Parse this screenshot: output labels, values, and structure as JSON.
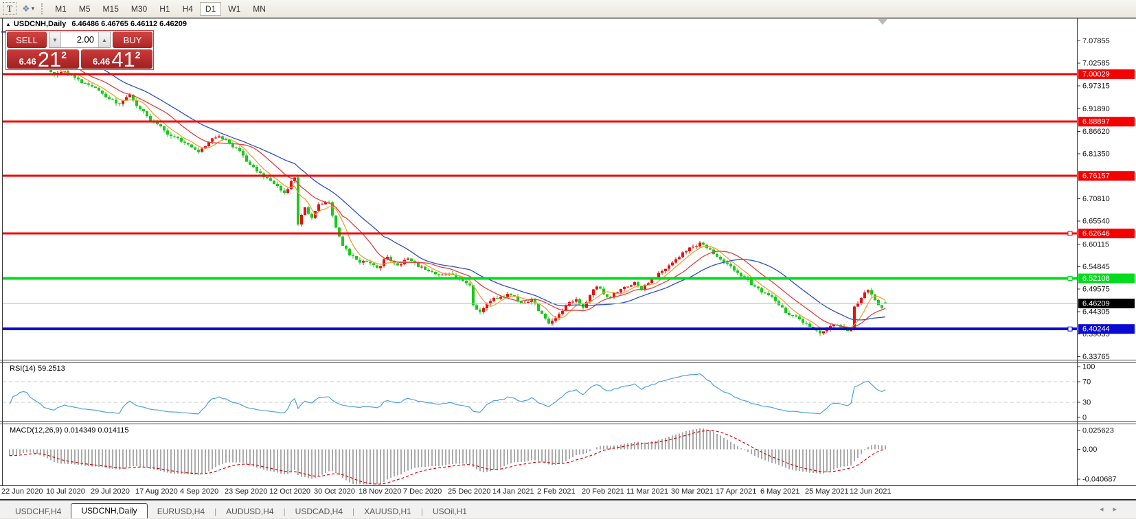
{
  "toolbar": {
    "text_tool_label": "T",
    "cursor_tool_icon": "❖",
    "dropdown_caret": "▾",
    "timeframes": [
      "M1",
      "M5",
      "M15",
      "M30",
      "H1",
      "H4",
      "D1",
      "W1",
      "MN"
    ],
    "active_timeframe": "D1"
  },
  "chart_header": {
    "collapse_icon": "▲",
    "symbol": "USDCNH,Daily",
    "quotes": "6.46486 6.46765 6.46112 6.46209"
  },
  "trade_panel": {
    "sell_label": "SELL",
    "buy_label": "BUY",
    "volume": "2.00",
    "vol_down_icon": "▼",
    "vol_up_icon": "▲",
    "sell_price": {
      "prefix": "6.46",
      "big": "21",
      "sup": "2"
    },
    "buy_price": {
      "prefix": "6.46",
      "big": "41",
      "sup": "2"
    }
  },
  "price_axis": {
    "ticks": [
      "7.07855",
      "7.02585",
      "6.97315",
      "6.91890",
      "6.86620",
      "6.81350",
      "6.70810",
      "6.65540",
      "6.60115",
      "6.54845",
      "6.49575",
      "6.44305",
      "6.39035",
      "6.33765"
    ]
  },
  "levels": [
    {
      "price": 7.00029,
      "label": "7.00029",
      "color": "#F50000",
      "thickness": 3,
      "marker": false
    },
    {
      "price": 6.88897,
      "label": "6.88897",
      "color": "#F50000",
      "thickness": 3,
      "marker": false
    },
    {
      "price": 6.76157,
      "label": "6.76157",
      "color": "#F50000",
      "thickness": 3,
      "marker": false
    },
    {
      "price": 6.62646,
      "label": "6.62646",
      "color": "#F50000",
      "thickness": 3,
      "marker": true
    },
    {
      "price": 6.52108,
      "label": "6.52108",
      "color": "#00DC1E",
      "thickness": 4,
      "marker": true
    },
    {
      "price": 6.40244,
      "label": "6.40244",
      "color": "#0A0AD2",
      "thickness": 4,
      "marker": true
    }
  ],
  "current_price": {
    "value": 6.46209,
    "label": "6.46209",
    "line_color": "#B4B4B4",
    "badge_color": "#000000"
  },
  "rsi_panel": {
    "label": "RSI(14) 59.2513",
    "ticks": [
      "100",
      "70",
      "30",
      "0"
    ],
    "guides": [
      70,
      30
    ],
    "line_color": "#4BA0E8",
    "guide_color": "#c8c8c8"
  },
  "macd_panel": {
    "label": "MACD(12,26,9) 0.014349 0.014115",
    "ticks": [
      "0.025623",
      "0.00",
      "-0.040687"
    ],
    "hist_color": "#ABABAB",
    "signal_color": "#E00000"
  },
  "date_axis": [
    "22 Jun 2020",
    "10 Jul 2020",
    "29 Jul 2020",
    "17 Aug 2020",
    "4 Sep 2020",
    "23 Sep 2020",
    "12 Oct 2020",
    "30 Oct 2020",
    "18 Nov 2020",
    "7 Dec 2020",
    "25 Dec 2020",
    "14 Jan 2021",
    "2 Feb 2021",
    "20 Feb 2021",
    "11 Mar 2021",
    "30 Mar 2021",
    "17 Apr 2021",
    "6 May 2021",
    "25 May 2021",
    "12 Jun 2021"
  ],
  "tabs": {
    "items": [
      "USDCHF,H4",
      "USDCNH,Daily",
      "EURUSD,H4",
      "AUDUSD,H4",
      "USDCAD,H4",
      "XAUUSD,H1",
      "USOil,H1"
    ],
    "active": "USDCNH,Daily",
    "nav_left_icon": "◂",
    "nav_right_icon": "▸"
  },
  "chart_data": {
    "type": "candlestick",
    "symbol": "USDCNH",
    "timeframe": "Daily",
    "last_ohlc": {
      "open": 6.46486,
      "high": 6.46765,
      "low": 6.46112,
      "close": 6.46209
    },
    "ylim": [
      6.31,
      7.12
    ],
    "bar_count": 256,
    "bars_per_label": 13,
    "x_labels": [
      "22 Jun 2020",
      "10 Jul 2020",
      "29 Jul 2020",
      "17 Aug 2020",
      "4 Sep 2020",
      "23 Sep 2020",
      "12 Oct 2020",
      "30 Oct 2020",
      "18 Nov 2020",
      "7 Dec 2020",
      "25 Dec 2020",
      "14 Jan 2021",
      "2 Feb 2021",
      "20 Feb 2021",
      "11 Mar 2021",
      "30 Mar 2021",
      "17 Apr 2021",
      "6 May 2021",
      "25 May 2021",
      "12 Jun 2021"
    ],
    "up_color": "#EA0F0F",
    "down_color": "#18CB18",
    "prehistory": {
      "start": 7.135,
      "end": 7.062,
      "count": 60
    },
    "close_waypoints": [
      [
        0,
        7.058
      ],
      [
        2,
        7.07
      ],
      [
        5,
        7.075
      ],
      [
        8,
        7.052
      ],
      [
        11,
        7.015
      ],
      [
        13,
        6.998
      ],
      [
        16,
        7.008
      ],
      [
        19,
        6.992
      ],
      [
        23,
        6.975
      ],
      [
        26,
        6.962
      ],
      [
        29,
        6.942
      ],
      [
        32,
        6.93
      ],
      [
        35,
        6.952
      ],
      [
        38,
        6.918
      ],
      [
        41,
        6.892
      ],
      [
        44,
        6.878
      ],
      [
        47,
        6.855
      ],
      [
        50,
        6.842
      ],
      [
        52,
        6.835
      ],
      [
        55,
        6.818
      ],
      [
        58,
        6.842
      ],
      [
        61,
        6.855
      ],
      [
        64,
        6.838
      ],
      [
        67,
        6.82
      ],
      [
        70,
        6.788
      ],
      [
        73,
        6.768
      ],
      [
        76,
        6.75
      ],
      [
        78,
        6.738
      ],
      [
        80,
        6.722
      ],
      [
        83,
        6.758
      ],
      [
        84,
        6.648
      ],
      [
        86,
        6.688
      ],
      [
        88,
        6.663
      ],
      [
        90,
        6.695
      ],
      [
        93,
        6.7
      ],
      [
        95,
        6.64
      ],
      [
        97,
        6.598
      ],
      [
        99,
        6.575
      ],
      [
        102,
        6.558
      ],
      [
        104,
        6.56
      ],
      [
        107,
        6.545
      ],
      [
        110,
        6.572
      ],
      [
        113,
        6.552
      ],
      [
        116,
        6.568
      ],
      [
        119,
        6.548
      ],
      [
        122,
        6.538
      ],
      [
        125,
        6.528
      ],
      [
        128,
        6.532
      ],
      [
        131,
        6.518
      ],
      [
        134,
        6.505
      ],
      [
        135,
        6.458
      ],
      [
        137,
        6.442
      ],
      [
        140,
        6.468
      ],
      [
        143,
        6.478
      ],
      [
        146,
        6.482
      ],
      [
        149,
        6.462
      ],
      [
        152,
        6.472
      ],
      [
        155,
        6.438
      ],
      [
        157,
        6.415
      ],
      [
        159,
        6.428
      ],
      [
        162,
        6.458
      ],
      [
        165,
        6.472
      ],
      [
        167,
        6.452
      ],
      [
        169,
        6.482
      ],
      [
        171,
        6.502
      ],
      [
        174,
        6.478
      ],
      [
        177,
        6.488
      ],
      [
        180,
        6.502
      ],
      [
        182,
        6.512
      ],
      [
        184,
        6.495
      ],
      [
        187,
        6.518
      ],
      [
        190,
        6.538
      ],
      [
        193,
        6.558
      ],
      [
        196,
        6.582
      ],
      [
        199,
        6.595
      ],
      [
        201,
        6.605
      ],
      [
        203,
        6.592
      ],
      [
        206,
        6.572
      ],
      [
        208,
        6.558
      ],
      [
        211,
        6.54
      ],
      [
        214,
        6.522
      ],
      [
        216,
        6.505
      ],
      [
        219,
        6.488
      ],
      [
        221,
        6.482
      ],
      [
        223,
        6.468
      ],
      [
        226,
        6.44
      ],
      [
        229,
        6.432
      ],
      [
        232,
        6.415
      ],
      [
        234,
        6.404
      ],
      [
        236,
        6.392
      ],
      [
        238,
        6.402
      ],
      [
        240,
        6.412
      ],
      [
        242,
        6.408
      ],
      [
        244,
        6.398
      ],
      [
        245,
        6.402
      ],
      [
        246,
        6.455
      ],
      [
        247,
        6.462
      ],
      [
        248,
        6.475
      ],
      [
        249,
        6.488
      ],
      [
        250,
        6.494
      ],
      [
        251,
        6.483
      ],
      [
        252,
        6.47
      ],
      [
        253,
        6.458
      ],
      [
        254,
        6.452
      ],
      [
        255,
        6.462
      ]
    ],
    "moving_averages": [
      {
        "period": 6,
        "color": "#F0A030"
      },
      {
        "period": 14,
        "color": "#E04040"
      },
      {
        "period": 26,
        "color": "#2C4FC8"
      }
    ],
    "horizontal_levels": [
      {
        "price": 7.00029,
        "color": "#F50000"
      },
      {
        "price": 6.88897,
        "color": "#F50000"
      },
      {
        "price": 6.76157,
        "color": "#F50000"
      },
      {
        "price": 6.62646,
        "color": "#F50000"
      },
      {
        "price": 6.52108,
        "color": "#00DC1E"
      },
      {
        "price": 6.40244,
        "color": "#0A0AD2"
      }
    ],
    "indicators": [
      {
        "name": "RSI",
        "period": 14,
        "current": 59.2513,
        "range": [
          0,
          100
        ],
        "guides": [
          70,
          30
        ]
      },
      {
        "name": "MACD",
        "fast": 12,
        "slow": 26,
        "signal": 9,
        "current_main": 0.014349,
        "current_signal": 0.014115,
        "range": [
          -0.040687,
          0.025623
        ]
      }
    ]
  }
}
